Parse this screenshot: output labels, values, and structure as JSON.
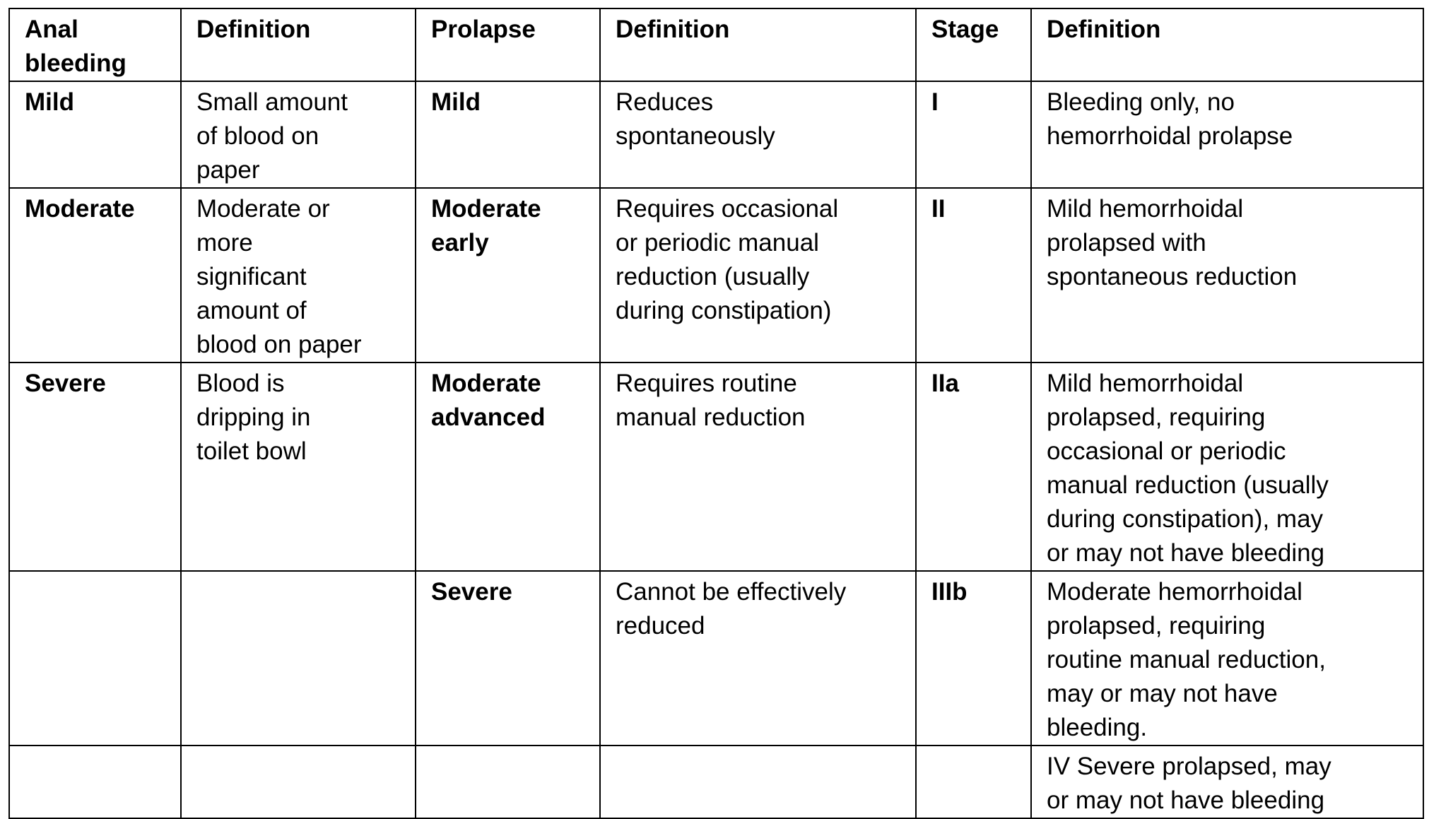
{
  "table": {
    "headers": [
      "Anal bleeding",
      "Definition",
      "Prolapse",
      "Definition",
      "Stage",
      "Definition"
    ],
    "header_lines": [
      [
        "Anal",
        "bleeding"
      ],
      [
        "Definition"
      ],
      [
        "Prolapse"
      ],
      [
        "Definition"
      ],
      [
        "Stage"
      ],
      [
        "Definition"
      ]
    ],
    "rows": [
      {
        "bleeding": [
          "Mild"
        ],
        "bleeding_definition": [
          "Small amount",
          "of blood on",
          "paper"
        ],
        "prolapse": [
          "Mild"
        ],
        "prolapse_definition": [
          "Reduces",
          "spontaneously"
        ],
        "stage": [
          "I"
        ],
        "stage_definition": [
          "Bleeding only, no",
          "hemorrhoidal prolapse"
        ]
      },
      {
        "bleeding": [
          "Moderate"
        ],
        "bleeding_definition": [
          "Moderate or",
          "more",
          "significant",
          "amount of",
          "blood on paper"
        ],
        "prolapse": [
          "Moderate",
          "early"
        ],
        "prolapse_definition": [
          "Requires occasional",
          "or periodic manual",
          "reduction (usually",
          "during constipation)"
        ],
        "stage": [
          "II"
        ],
        "stage_definition": [
          "Mild hemorrhoidal",
          "prolapsed with",
          "spontaneous reduction"
        ]
      },
      {
        "bleeding": [
          "Severe"
        ],
        "bleeding_definition": [
          "Blood is",
          "dripping in",
          "toilet bowl"
        ],
        "prolapse": [
          "Moderate",
          "advanced"
        ],
        "prolapse_definition": [
          "Requires routine",
          "manual reduction"
        ],
        "stage": [
          "IIa"
        ],
        "stage_definition": [
          "Mild hemorrhoidal",
          "prolapsed, requiring",
          "occasional or periodic",
          "manual reduction (usually",
          "during constipation), may",
          "or may not have bleeding"
        ]
      },
      {
        "bleeding": [
          ""
        ],
        "bleeding_definition": [
          ""
        ],
        "prolapse": [
          "Severe"
        ],
        "prolapse_definition": [
          "Cannot be effectively",
          "reduced"
        ],
        "stage": [
          "IIIb"
        ],
        "stage_definition": [
          "Moderate hemorrhoidal",
          "prolapsed, requiring",
          "routine manual reduction,",
          "may or may not have",
          "bleeding."
        ]
      },
      {
        "bleeding": [
          ""
        ],
        "bleeding_definition": [
          ""
        ],
        "prolapse": [
          ""
        ],
        "prolapse_definition": [
          ""
        ],
        "stage": [
          ""
        ],
        "stage_definition": [
          "IV Severe prolapsed, may",
          "or may not have bleeding"
        ]
      }
    ]
  }
}
